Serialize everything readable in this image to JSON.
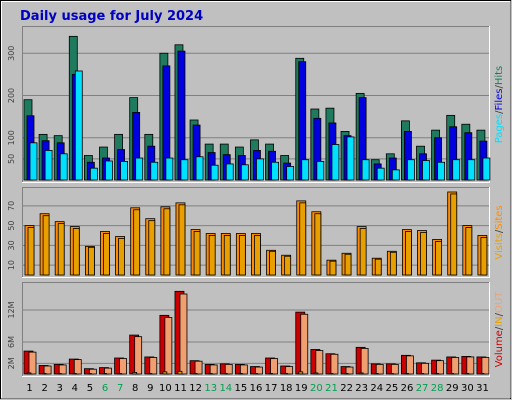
{
  "title": "Daily usage for July 2024",
  "colors": {
    "background": "#c0c0c0",
    "title": "#0000c0",
    "hits": "#1f7a5e",
    "files": "#0000e0",
    "pages": "#00e0ff",
    "visits": "#ff8c00",
    "sites": "#e8a000",
    "volume": "#cc0000",
    "in": "#e8a000",
    "out": "#f0a070",
    "weekend": "#00a050",
    "weekday": "#000000"
  },
  "chart_data": [
    {
      "type": "bar",
      "panel": "hits-files-pages",
      "legend": [
        "Hits",
        "Files",
        "Pages"
      ],
      "legend_separator": "/",
      "yticks": [
        50,
        100,
        200,
        300
      ],
      "ylim": [
        0,
        355
      ],
      "categories": [
        "1",
        "2",
        "3",
        "4",
        "5",
        "6",
        "7",
        "8",
        "9",
        "10",
        "11",
        "12",
        "13",
        "14",
        "15",
        "16",
        "17",
        "18",
        "19",
        "20",
        "21",
        "22",
        "23",
        "24",
        "25",
        "26",
        "27",
        "28",
        "29",
        "30",
        "31"
      ],
      "series": [
        {
          "name": "Hits",
          "values": [
            190,
            108,
            105,
            340,
            58,
            78,
            108,
            195,
            108,
            300,
            320,
            142,
            85,
            85,
            78,
            95,
            85,
            58,
            288,
            168,
            170,
            115,
            205,
            48,
            62,
            140,
            80,
            118,
            153,
            132,
            118
          ]
        },
        {
          "name": "Files",
          "values": [
            152,
            93,
            88,
            250,
            42,
            52,
            72,
            160,
            80,
            270,
            305,
            130,
            65,
            60,
            58,
            70,
            68,
            40,
            280,
            146,
            135,
            105,
            195,
            38,
            52,
            115,
            62,
            100,
            126,
            112,
            92
          ]
        },
        {
          "name": "Pages",
          "values": [
            88,
            70,
            62,
            258,
            28,
            45,
            44,
            52,
            42,
            52,
            48,
            55,
            35,
            38,
            36,
            50,
            42,
            32,
            48,
            44,
            84,
            102,
            48,
            28,
            24,
            48,
            46,
            42,
            48,
            48,
            52
          ]
        }
      ]
    },
    {
      "type": "bar",
      "panel": "visits-sites",
      "legend": [
        "Visits",
        "Sites"
      ],
      "legend_separator": "/",
      "yticks": [
        10,
        30,
        50,
        70
      ],
      "ylim": [
        0,
        85
      ],
      "categories": [
        "1",
        "2",
        "3",
        "4",
        "5",
        "6",
        "7",
        "8",
        "9",
        "10",
        "11",
        "12",
        "13",
        "14",
        "15",
        "16",
        "17",
        "18",
        "19",
        "20",
        "21",
        "22",
        "23",
        "24",
        "25",
        "26",
        "27",
        "28",
        "29",
        "30",
        "31"
      ],
      "series": [
        {
          "name": "Visits",
          "values": [
            50,
            62,
            54,
            49,
            29,
            44,
            39,
            68,
            57,
            69,
            73,
            46,
            42,
            42,
            42,
            42,
            25,
            20,
            75,
            64,
            15,
            22,
            49,
            17,
            24,
            46,
            45,
            36,
            84,
            50,
            40
          ]
        },
        {
          "name": "Sites",
          "values": [
            48,
            60,
            52,
            47,
            28,
            42,
            37,
            66,
            55,
            67,
            71,
            44,
            40,
            40,
            40,
            40,
            24,
            19,
            73,
            62,
            14,
            21,
            47,
            16,
            23,
            44,
            43,
            34,
            82,
            48,
            38
          ]
        }
      ]
    },
    {
      "type": "bar",
      "panel": "volume",
      "legend": [
        "Volume",
        "IN",
        "OUT"
      ],
      "legend_separator": "/",
      "yticks": [
        "2M",
        "6M",
        "12M"
      ],
      "ytick_values": [
        2,
        6,
        12
      ],
      "ylim": [
        0,
        16.5
      ],
      "categories": [
        "1",
        "2",
        "3",
        "4",
        "5",
        "6",
        "7",
        "8",
        "9",
        "10",
        "11",
        "12",
        "13",
        "14",
        "15",
        "16",
        "17",
        "18",
        "19",
        "20",
        "21",
        "22",
        "23",
        "24",
        "25",
        "26",
        "27",
        "28",
        "29",
        "30",
        "31"
      ],
      "series": [
        {
          "name": "Volume",
          "values": [
            4.3,
            1.6,
            1.8,
            2.8,
            1.0,
            1.2,
            3.0,
            7.3,
            3.2,
            11.0,
            15.5,
            2.5,
            1.8,
            1.9,
            1.8,
            1.4,
            3.0,
            1.5,
            11.6,
            4.6,
            3.8,
            1.4,
            5.0,
            1.9,
            1.9,
            3.5,
            2.1,
            2.6,
            3.2,
            3.3,
            3.2
          ]
        },
        {
          "name": "IN",
          "values": [
            0.2,
            0.1,
            0.1,
            0.1,
            0.1,
            0.1,
            0.1,
            0.3,
            0.1,
            0.4,
            0.5,
            0.1,
            0.1,
            0.1,
            0.1,
            0.1,
            0.1,
            0.1,
            0.4,
            0.2,
            0.1,
            0.1,
            0.2,
            0.1,
            0.1,
            0.1,
            0.1,
            0.1,
            0.1,
            0.1,
            0.1
          ]
        },
        {
          "name": "OUT",
          "values": [
            4.1,
            1.5,
            1.7,
            2.7,
            0.9,
            1.1,
            2.9,
            7.0,
            3.1,
            10.6,
            15.0,
            2.4,
            1.7,
            1.8,
            1.7,
            1.3,
            2.9,
            1.4,
            11.2,
            4.4,
            3.7,
            1.3,
            4.8,
            1.8,
            1.8,
            3.4,
            2.0,
            2.5,
            3.1,
            3.2,
            3.1
          ]
        }
      ]
    }
  ],
  "x_axis": {
    "labels": [
      "1",
      "2",
      "3",
      "4",
      "5",
      "6",
      "7",
      "8",
      "9",
      "10",
      "11",
      "12",
      "13",
      "14",
      "15",
      "16",
      "17",
      "18",
      "19",
      "20",
      "21",
      "22",
      "23",
      "24",
      "25",
      "26",
      "27",
      "28",
      "29",
      "30",
      "31"
    ],
    "weekend_days": [
      "6",
      "7",
      "13",
      "14",
      "20",
      "21",
      "27",
      "28"
    ]
  }
}
